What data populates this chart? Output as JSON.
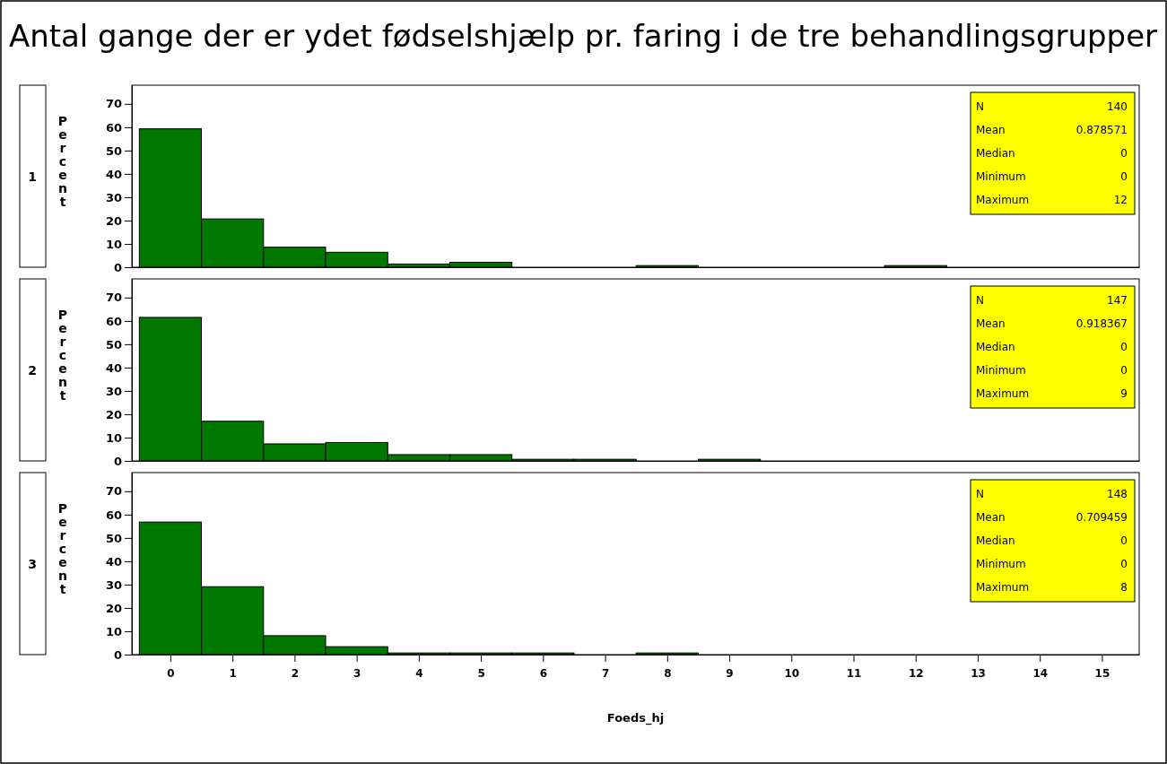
{
  "chart_data": [
    {
      "type": "histogram",
      "title": "Antal gange der er ydet fødselshjælp pr. faring i de tre behandlingsgrupper",
      "subtitle": "1",
      "ylabel": "Percent",
      "bins": [
        -0.5,
        0.5,
        1.5,
        2.5,
        3.5,
        4.5,
        5.5,
        6.5,
        7.5,
        8.5,
        9.5,
        10.5,
        11.5,
        12.5,
        13.5,
        14.5,
        15.5
      ],
      "values": [
        59.3,
        20.7,
        8.6,
        6.4,
        1.4,
        2.1,
        0,
        0,
        0.7,
        0,
        0,
        0,
        0.7,
        0,
        0,
        0
      ],
      "color": "#007800",
      "xlim": [
        -0.62,
        15.6
      ],
      "ylim": [
        0,
        78
      ],
      "xticks": [
        0,
        1,
        2,
        3,
        4,
        5,
        6,
        7,
        8,
        9,
        10,
        11,
        12,
        13,
        14,
        15
      ],
      "yticks": [
        0,
        10,
        20,
        30,
        40,
        50,
        60,
        70
      ],
      "tick_labels": "y",
      "annotations": [
        "N",
        "140",
        "Mean",
        "0.878571",
        "Median",
        "0",
        "Minimum",
        "0",
        "Maximum",
        "12"
      ]
    },
    {
      "type": "histogram",
      "subtitle": "2",
      "ylabel": "Percent",
      "bins": [
        -0.5,
        0.5,
        1.5,
        2.5,
        3.5,
        4.5,
        5.5,
        6.5,
        7.5,
        8.5,
        9.5,
        10.5,
        11.5,
        12.5,
        13.5,
        14.5,
        15.5
      ],
      "values": [
        61.5,
        17,
        7.3,
        7.9,
        2.7,
        2.7,
        0.7,
        0.7,
        0,
        0.7,
        0,
        0,
        0,
        0,
        0,
        0
      ],
      "color": "#007800",
      "xlim": [
        -0.62,
        15.6
      ],
      "ylim": [
        0,
        78
      ],
      "xticks": [
        0,
        1,
        2,
        3,
        4,
        5,
        6,
        7,
        8,
        9,
        10,
        11,
        12,
        13,
        14,
        15
      ],
      "yticks": [
        0,
        10,
        20,
        30,
        40,
        50,
        60,
        70
      ],
      "tick_labels": "y",
      "annotations": [
        "N",
        "147",
        "Mean",
        "0.918367",
        "Median",
        "0",
        "Minimum",
        "0",
        "Maximum",
        "9"
      ]
    },
    {
      "type": "histogram",
      "subtitle": "3",
      "ylabel": "Percent",
      "xlabel": "Foeds_hj",
      "bins": [
        -0.5,
        0.5,
        1.5,
        2.5,
        3.5,
        4.5,
        5.5,
        6.5,
        7.5,
        8.5,
        9.5,
        10.5,
        11.5,
        12.5,
        13.5,
        14.5,
        15.5
      ],
      "values": [
        56.8,
        29.1,
        8.1,
        3.4,
        0.7,
        0.7,
        0.7,
        0,
        0.7,
        0,
        0,
        0,
        0,
        0,
        0,
        0
      ],
      "color": "#007800",
      "xlim": [
        -0.62,
        15.6
      ],
      "ylim": [
        0,
        78
      ],
      "xticks": [
        0,
        1,
        2,
        3,
        4,
        5,
        6,
        7,
        8,
        9,
        10,
        11,
        12,
        13,
        14,
        15
      ],
      "yticks": [
        0,
        10,
        20,
        30,
        40,
        50,
        60,
        70
      ],
      "annotations": [
        "N",
        "148",
        "Mean",
        "0.709459",
        "Median",
        "0",
        "Minimum",
        "0",
        "Maximum",
        "8"
      ]
    }
  ]
}
